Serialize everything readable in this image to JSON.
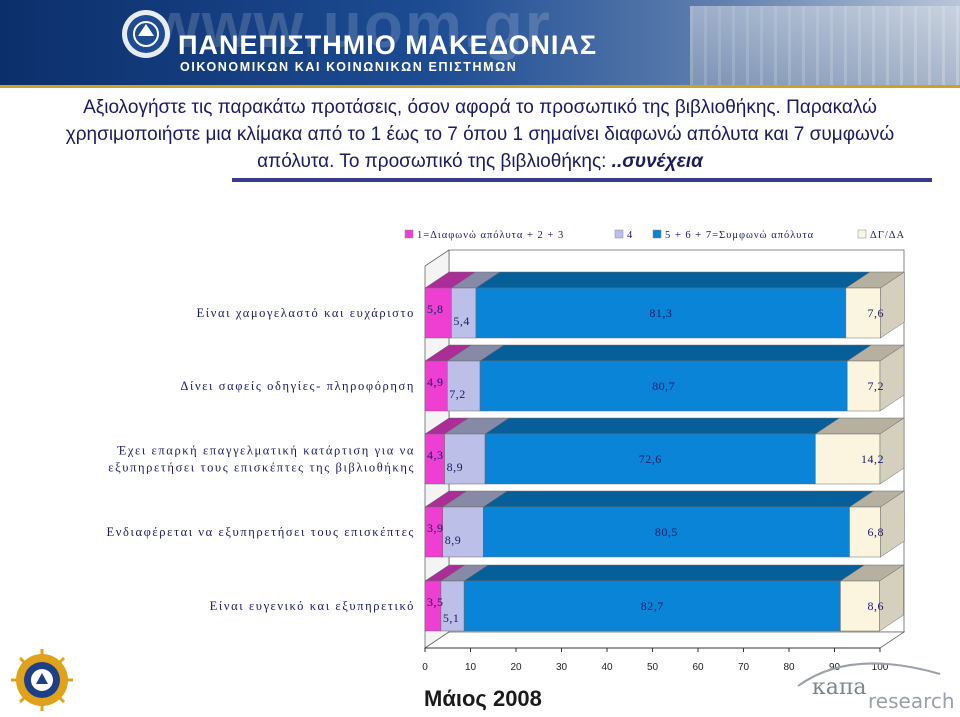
{
  "header": {
    "watermark_url": "www.uom.gr",
    "university_name": "ΠΑΝΕΠΙΣΤΗΜΙΟ ΜΑΚΕΔΟΝΙΑΣ",
    "university_subtitle": "ΟΙΚΟΝΟΜΙΚΩΝ ΚΑΙ ΚΟΙΝΩΝΙΚΩΝ ΕΠΙΣΤΗΜΩΝ"
  },
  "question": {
    "line1": "Αξιολογήστε τις παρακάτω προτάσεις, όσον αφορά το προσωπικό της βιβλιοθήκης. Παρακαλώ",
    "line2": "χρησιμοποιήστε μια κλίμακα από το 1 έως το 7 όπου 1 σημαίνει διαφωνώ απόλυτα και 7 συμφωνώ",
    "line3": "απόλυτα. Το προσωπικό της βιβλιοθήκης: ",
    "continuation": "..συνέχεια"
  },
  "footer": {
    "date": "Μάιος 2008",
    "logo_word": "κaπa",
    "logo_sub": "research"
  },
  "colors": {
    "disagree": "#ee3fd2",
    "neutral": "#bcc0e8",
    "agree": "#0a84d6",
    "dk": "#fbf4de",
    "banner": "#1d4c93",
    "text": "#1a1a66"
  },
  "chart_data": {
    "type": "bar",
    "orientation": "horizontal-stacked-100",
    "legend_position": "top",
    "xlim": [
      0,
      100
    ],
    "xticks": [
      "0",
      "10",
      "20",
      "30",
      "40",
      "50",
      "60",
      "70",
      "80",
      "90",
      "100"
    ],
    "series": [
      {
        "name": "1=Διαφωνώ απόλυτα + 2 + 3",
        "color": "#ee3fd2",
        "values": [
          5.8,
          4.9,
          4.3,
          3.9,
          3.5
        ],
        "labels": [
          "5,8",
          "4,9",
          "4,3",
          "3,9",
          "3,5"
        ]
      },
      {
        "name": "4",
        "color": "#bcc0e8",
        "values": [
          5.4,
          7.2,
          8.9,
          8.9,
          5.1
        ],
        "labels": [
          "5,4",
          "7,2",
          "8,9",
          "8,9",
          "5,1"
        ]
      },
      {
        "name": "5 + 6 + 7=Συμφωνώ απόλυτα",
        "color": "#0a84d6",
        "values": [
          81.3,
          80.7,
          72.6,
          80.5,
          82.7
        ],
        "labels": [
          "81,3",
          "80,7",
          "72,6",
          "80,5",
          "82,7"
        ]
      },
      {
        "name": "ΔΓ/ΔΑ",
        "color": "#fbf4de",
        "values": [
          7.6,
          7.2,
          14.2,
          6.8,
          8.6
        ],
        "labels": [
          "7,6",
          "7,2",
          "14,2",
          "6,8",
          "8,6"
        ]
      }
    ],
    "categories": [
      [
        "Είναι χαμογελαστό και ευχάριστο"
      ],
      [
        "Δίνει σαφείς οδηγίες- πληροφόρηση"
      ],
      [
        "Έχει επαρκή επαγγελματική κατάρτιση για να",
        "εξυπηρετήσει τους επισκέπτες της βιβλιοθήκης"
      ],
      [
        "Ενδιαφέρεται να εξυπηρετήσει τους επισκέπτες"
      ],
      [
        "Είναι ευγενικό και εξυπηρετικό"
      ]
    ]
  }
}
